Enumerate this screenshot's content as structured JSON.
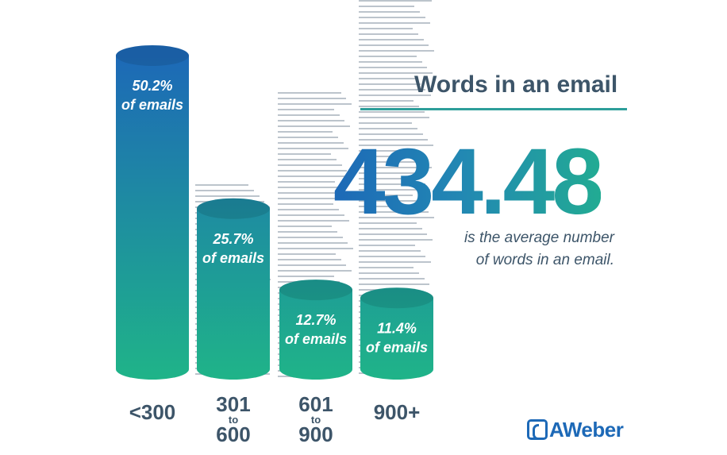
{
  "headline": "Words in an email",
  "average_number": "434.48",
  "caption_line1": "is the average number",
  "caption_line2": "of words in an email.",
  "logo_text": "AWeber",
  "colors": {
    "top": "#1d69b7",
    "bottom": "#1fb488",
    "text": "#3d5569",
    "rule": "#2d9e9a"
  },
  "chart_data": {
    "type": "bar",
    "title": "Words in an email",
    "categories": [
      "<300",
      "301 to 600",
      "601 to 900",
      "900+"
    ],
    "values": [
      50.2,
      25.7,
      12.7,
      11.4
    ],
    "unit": "% of emails",
    "bar_labels": [
      "50.2%",
      "25.7%",
      "12.7%",
      "11.4%"
    ],
    "bar_label_suffix": "of emails",
    "category_labels": [
      {
        "main": "<300"
      },
      {
        "top": "301",
        "to": "to",
        "bottom": "600"
      },
      {
        "top": "601",
        "to": "to",
        "bottom": "900"
      },
      {
        "main": "900+"
      }
    ]
  }
}
